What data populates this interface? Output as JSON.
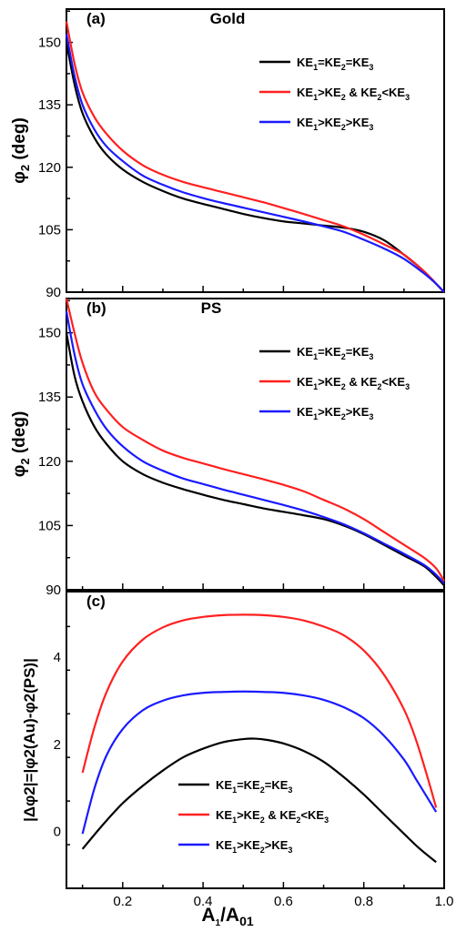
{
  "figure": {
    "xlabel_main": "A",
    "xlabel_sub1": "1",
    "xlabel_slash": "/A",
    "xlabel_sub2": "01"
  },
  "colors": {
    "black": "#000000",
    "red": "#ff2020",
    "blue": "#1a1aff"
  },
  "chart_data": [
    {
      "type": "line",
      "panel_label": "(a)",
      "title": "Gold",
      "ylabel": "φ2 (deg)",
      "ylabel_main": "φ",
      "ylabel_sub": "2",
      "ylabel_rest": " (deg)",
      "xlim": [
        0.06,
        1.0
      ],
      "ylim": [
        90,
        158
      ],
      "yticks": [
        90,
        105,
        120,
        135,
        150
      ],
      "legend_position": "top-right",
      "series": [
        {
          "name": "KE1=KE2=KE3",
          "color": "#000000",
          "x": [
            0.06,
            0.08,
            0.1,
            0.13,
            0.16,
            0.2,
            0.25,
            0.3,
            0.35,
            0.4,
            0.45,
            0.5,
            0.55,
            0.6,
            0.65,
            0.7,
            0.75,
            0.8,
            0.85,
            0.9,
            0.95,
            0.98,
            1.0
          ],
          "y": [
            150,
            140,
            133,
            127,
            123,
            119.5,
            116.5,
            114.3,
            112.5,
            111.2,
            110,
            108.8,
            107.8,
            107,
            106.5,
            106,
            105.5,
            104.5,
            102.5,
            99,
            95,
            92,
            90
          ]
        },
        {
          "name": "KE1>KE2 & KE2<KE3",
          "color": "#ff2020",
          "x": [
            0.06,
            0.08,
            0.1,
            0.13,
            0.16,
            0.2,
            0.25,
            0.3,
            0.35,
            0.4,
            0.45,
            0.5,
            0.55,
            0.6,
            0.65,
            0.7,
            0.75,
            0.8,
            0.85,
            0.9,
            0.95,
            0.98,
            1.0
          ],
          "y": [
            155,
            145,
            138,
            132,
            128,
            124,
            120.5,
            118.2,
            116.5,
            115.2,
            114,
            112.8,
            111.6,
            110.2,
            108.8,
            107.3,
            105.8,
            103.8,
            101.5,
            99,
            95,
            92,
            90
          ]
        },
        {
          "name": "KE1>KE2>KE3",
          "color": "#1a1aff",
          "x": [
            0.06,
            0.08,
            0.1,
            0.13,
            0.16,
            0.2,
            0.25,
            0.3,
            0.35,
            0.4,
            0.45,
            0.5,
            0.55,
            0.6,
            0.65,
            0.7,
            0.75,
            0.8,
            0.85,
            0.9,
            0.95,
            0.98,
            1.0
          ],
          "y": [
            152,
            142,
            135,
            129,
            125,
            121.5,
            118,
            115.8,
            114,
            112.6,
            111.4,
            110.3,
            109.2,
            108.1,
            107,
            105.8,
            104.5,
            102.6,
            100.5,
            98,
            94.5,
            92,
            90
          ]
        }
      ],
      "legend": [
        {
          "pre": "KE",
          "s1": "1",
          "m1": "=KE",
          "s2": "2",
          "m2": "=KE",
          "s3": "3",
          "m3": ""
        },
        {
          "pre": "KE",
          "s1": "1",
          "m1": ">KE",
          "s2": "2",
          "m2": " & KE",
          "s3": "2",
          "m3": "<KE",
          "s4": "3"
        },
        {
          "pre": "KE",
          "s1": "1",
          "m1": ">KE",
          "s2": "2",
          "m2": ">KE",
          "s3": "3",
          "m3": ""
        }
      ]
    },
    {
      "type": "line",
      "panel_label": "(b)",
      "title": "PS",
      "ylabel": "φ2 (deg)",
      "ylabel_main": "φ",
      "ylabel_sub": "2",
      "ylabel_rest": " (deg)",
      "xlim": [
        0.06,
        1.0
      ],
      "ylim": [
        90,
        158
      ],
      "yticks": [
        90,
        105,
        120,
        135,
        150
      ],
      "legend_position": "top-right",
      "series": [
        {
          "name": "KE1=KE2=KE3",
          "color": "#000000",
          "x": [
            0.06,
            0.08,
            0.1,
            0.13,
            0.16,
            0.2,
            0.25,
            0.3,
            0.35,
            0.4,
            0.45,
            0.5,
            0.55,
            0.6,
            0.65,
            0.7,
            0.75,
            0.8,
            0.85,
            0.9,
            0.95,
            0.98,
            1.0
          ],
          "y": [
            150,
            140,
            134,
            128,
            124,
            120,
            117,
            115,
            113.5,
            112.2,
            111,
            110,
            109,
            108.2,
            107.4,
            106.5,
            105,
            103,
            100.5,
            98,
            95.5,
            93,
            91
          ]
        },
        {
          "name": "KE1>KE2 & KE2<KE3",
          "color": "#ff2020",
          "x": [
            0.06,
            0.08,
            0.1,
            0.13,
            0.16,
            0.2,
            0.25,
            0.3,
            0.35,
            0.4,
            0.45,
            0.5,
            0.55,
            0.6,
            0.65,
            0.7,
            0.75,
            0.8,
            0.85,
            0.9,
            0.95,
            0.98,
            1.0
          ],
          "y": [
            158,
            150,
            143,
            136,
            132,
            128,
            125,
            122.5,
            120.8,
            119.5,
            118.2,
            117,
            115.8,
            114.5,
            113,
            111,
            109,
            106.5,
            103.5,
            100.5,
            97.5,
            95,
            92
          ]
        },
        {
          "name": "KE1>KE2>KE3",
          "color": "#1a1aff",
          "x": [
            0.06,
            0.08,
            0.1,
            0.13,
            0.16,
            0.2,
            0.25,
            0.3,
            0.35,
            0.4,
            0.45,
            0.5,
            0.55,
            0.6,
            0.65,
            0.7,
            0.75,
            0.8,
            0.85,
            0.9,
            0.95,
            0.98,
            1.0
          ],
          "y": [
            155,
            145,
            138,
            132,
            127.5,
            123.5,
            120,
            117.8,
            116,
            114.7,
            113.4,
            112.2,
            111,
            109.8,
            108.5,
            107,
            105.3,
            103.2,
            100.8,
            98.4,
            95.8,
            93.5,
            91.5
          ]
        }
      ],
      "legend": [
        {
          "pre": "KE",
          "s1": "1",
          "m1": "=KE",
          "s2": "2",
          "m2": "=KE",
          "s3": "3",
          "m3": ""
        },
        {
          "pre": "KE",
          "s1": "1",
          "m1": ">KE",
          "s2": "2",
          "m2": " & KE",
          "s3": "2",
          "m3": "<KE",
          "s4": "3"
        },
        {
          "pre": "KE",
          "s1": "1",
          "m1": ">KE",
          "s2": "2",
          "m2": ">KE",
          "s3": "3",
          "m3": ""
        }
      ]
    },
    {
      "type": "line",
      "panel_label": "(c)",
      "title": "",
      "ylabel": "|Δφ2|=|φ2(Au)-φ2(PS)|",
      "xlim": [
        0.06,
        1.0
      ],
      "ylim": [
        -1.3,
        5.5
      ],
      "yticks": [
        0,
        2,
        4
      ],
      "xticks": [
        0.2,
        0.4,
        0.6,
        0.8,
        1.0
      ],
      "xtick_labels": [
        "0.2",
        "0.4",
        "0.6",
        "0.8",
        "1.0"
      ],
      "legend_position": "bottom-center",
      "series": [
        {
          "name": "KE1=KE2=KE3",
          "color": "#000000",
          "x": [
            0.1,
            0.15,
            0.2,
            0.25,
            0.3,
            0.35,
            0.4,
            0.45,
            0.5,
            0.53,
            0.56,
            0.6,
            0.65,
            0.7,
            0.75,
            0.8,
            0.85,
            0.9,
            0.94,
            0.98
          ],
          "y": [
            -0.4,
            0.15,
            0.65,
            1.05,
            1.4,
            1.7,
            1.9,
            2.05,
            2.12,
            2.13,
            2.1,
            2.02,
            1.85,
            1.6,
            1.25,
            0.85,
            0.4,
            -0.05,
            -0.4,
            -0.7
          ]
        },
        {
          "name": "KE1>KE2 & KE2<KE3",
          "color": "#ff2020",
          "x": [
            0.1,
            0.13,
            0.16,
            0.2,
            0.25,
            0.3,
            0.35,
            0.4,
            0.45,
            0.5,
            0.55,
            0.6,
            0.65,
            0.7,
            0.75,
            0.8,
            0.85,
            0.9,
            0.93,
            0.96,
            0.98
          ],
          "y": [
            1.35,
            2.4,
            3.2,
            3.9,
            4.4,
            4.68,
            4.84,
            4.92,
            4.96,
            4.97,
            4.96,
            4.92,
            4.84,
            4.7,
            4.5,
            4.15,
            3.6,
            2.8,
            2.1,
            1.2,
            0.55
          ]
        },
        {
          "name": "KE1>KE2>KE3",
          "color": "#1a1aff",
          "x": [
            0.1,
            0.13,
            0.16,
            0.2,
            0.25,
            0.3,
            0.35,
            0.4,
            0.45,
            0.5,
            0.55,
            0.6,
            0.65,
            0.7,
            0.75,
            0.8,
            0.85,
            0.9,
            0.93,
            0.96,
            0.98
          ],
          "y": [
            -0.05,
            1.0,
            1.75,
            2.35,
            2.78,
            3.0,
            3.12,
            3.18,
            3.2,
            3.21,
            3.2,
            3.18,
            3.12,
            3.02,
            2.85,
            2.6,
            2.2,
            1.65,
            1.2,
            0.75,
            0.45
          ]
        }
      ],
      "legend": [
        {
          "pre": "KE",
          "s1": "1",
          "m1": "=KE",
          "s2": "2",
          "m2": "=KE",
          "s3": "3",
          "m3": ""
        },
        {
          "pre": "KE",
          "s1": "1",
          "m1": ">KE",
          "s2": "2",
          "m2": " & KE",
          "s3": "2",
          "m3": "<KE",
          "s4": "3"
        },
        {
          "pre": "KE",
          "s1": "1",
          "m1": ">KE",
          "s2": "2",
          "m2": ">KE",
          "s3": "3",
          "m3": ""
        }
      ]
    }
  ]
}
